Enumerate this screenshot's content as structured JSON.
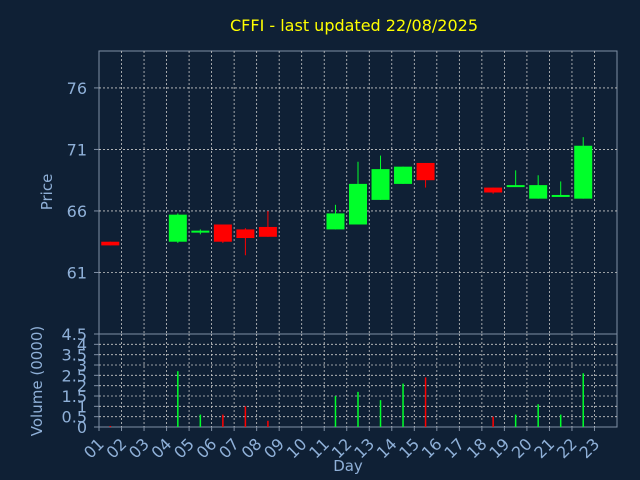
{
  "chart_data": [
    {
      "type": "candlestick",
      "title": "CFFI - last updated 22/08/2025",
      "xlabel": "",
      "ylabel": "Price",
      "ylim": [
        56,
        79
      ],
      "yticks": [
        61,
        66,
        71,
        76
      ],
      "grid": true,
      "categories": [
        "01",
        "02",
        "03",
        "04",
        "05",
        "06",
        "07",
        "08",
        "09",
        "10",
        "11",
        "12",
        "13",
        "14",
        "15",
        "16",
        "17",
        "18",
        "19",
        "20",
        "21",
        "22",
        "23"
      ],
      "candles": [
        {
          "day": "01",
          "open": 63.5,
          "high": 63.5,
          "low": 63.2,
          "close": 63.2
        },
        {
          "day": "04",
          "open": 63.5,
          "high": 65.8,
          "low": 63.4,
          "close": 65.7
        },
        {
          "day": "05",
          "open": 64.3,
          "high": 64.5,
          "low": 64.1,
          "close": 64.4
        },
        {
          "day": "06",
          "open": 64.9,
          "high": 64.9,
          "low": 63.4,
          "close": 63.5
        },
        {
          "day": "07",
          "open": 64.5,
          "high": 64.6,
          "low": 62.4,
          "close": 63.8
        },
        {
          "day": "08",
          "open": 64.7,
          "high": 66.0,
          "low": 63.9,
          "close": 63.9
        },
        {
          "day": "11",
          "open": 64.5,
          "high": 66.5,
          "low": 64.5,
          "close": 65.8
        },
        {
          "day": "12",
          "open": 64.9,
          "high": 70.0,
          "low": 64.9,
          "close": 68.2
        },
        {
          "day": "13",
          "open": 66.9,
          "high": 70.5,
          "low": 66.9,
          "close": 69.4
        },
        {
          "day": "14",
          "open": 68.2,
          "high": 69.6,
          "low": 68.2,
          "close": 69.6
        },
        {
          "day": "15",
          "open": 69.9,
          "high": 69.9,
          "low": 67.9,
          "close": 68.5
        },
        {
          "day": "18",
          "open": 67.9,
          "high": 67.9,
          "low": 67.4,
          "close": 67.5
        },
        {
          "day": "19",
          "open": 68.0,
          "high": 69.3,
          "low": 68.0,
          "close": 68.1
        },
        {
          "day": "20",
          "open": 67.0,
          "high": 68.9,
          "low": 67.0,
          "close": 68.1
        },
        {
          "day": "21",
          "open": 67.2,
          "high": 68.4,
          "low": 67.2,
          "close": 67.3
        },
        {
          "day": "22",
          "open": 67.0,
          "high": 72.0,
          "low": 67.0,
          "close": 71.3
        }
      ],
      "up_color": "#00ff2a",
      "down_color": "#ff0000"
    },
    {
      "type": "bar",
      "title": "",
      "xlabel": "Day",
      "ylabel": "Volume (0000)",
      "ylim": [
        0,
        4.5
      ],
      "yticks": [
        "0",
        "0.5",
        "1",
        "1.5",
        "2",
        "2.5",
        "3",
        "3.5",
        "4",
        "4.5"
      ],
      "grid": true,
      "categories": [
        "01",
        "02",
        "03",
        "04",
        "05",
        "06",
        "07",
        "08",
        "09",
        "10",
        "11",
        "12",
        "13",
        "14",
        "15",
        "16",
        "17",
        "18",
        "19",
        "20",
        "21",
        "22",
        "23"
      ],
      "bars": [
        {
          "day": "01",
          "value": 0.05,
          "direction": "down"
        },
        {
          "day": "04",
          "value": 2.7,
          "direction": "up"
        },
        {
          "day": "05",
          "value": 0.6,
          "direction": "up"
        },
        {
          "day": "06",
          "value": 0.6,
          "direction": "down"
        },
        {
          "day": "07",
          "value": 1.0,
          "direction": "down"
        },
        {
          "day": "08",
          "value": 0.3,
          "direction": "down"
        },
        {
          "day": "11",
          "value": 1.5,
          "direction": "up"
        },
        {
          "day": "12",
          "value": 1.7,
          "direction": "up"
        },
        {
          "day": "13",
          "value": 1.3,
          "direction": "up"
        },
        {
          "day": "14",
          "value": 2.1,
          "direction": "up"
        },
        {
          "day": "15",
          "value": 2.4,
          "direction": "down"
        },
        {
          "day": "18",
          "value": 0.5,
          "direction": "down"
        },
        {
          "day": "19",
          "value": 0.6,
          "direction": "up"
        },
        {
          "day": "20",
          "value": 1.1,
          "direction": "up"
        },
        {
          "day": "21",
          "value": 0.6,
          "direction": "up"
        },
        {
          "day": "22",
          "value": 2.6,
          "direction": "up"
        }
      ]
    }
  ],
  "colors": {
    "background": "#0f2035",
    "title": "#ffff00",
    "axis_text": "#8fb0d8",
    "grid": "#c8c8c8",
    "frame": "#7f8fa5",
    "up": "#00ff2a",
    "down": "#ff0000"
  }
}
